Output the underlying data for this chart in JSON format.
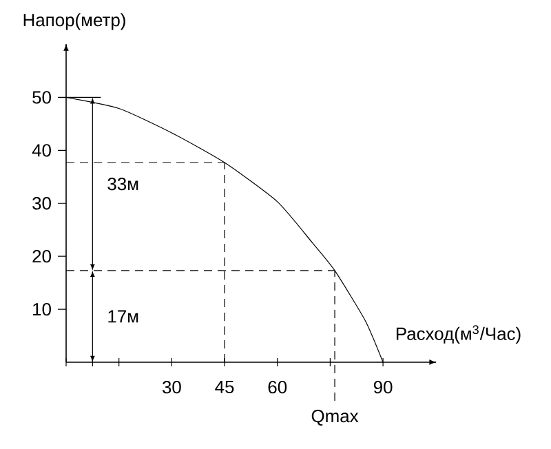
{
  "chart_data": {
    "type": "line",
    "xlabel": "Расход(м$^{3}$/Час)",
    "ylabel": "Напор(метр)",
    "x": [
      0,
      15,
      30,
      45,
      60,
      70,
      76.3,
      85,
      90
    ],
    "values": [
      50,
      47.9,
      43.3,
      37.7,
      30.3,
      22.5,
      17.3,
      7.8,
      0
    ],
    "color": "#000000",
    "xlim": [
      0,
      105
    ],
    "ylim": [
      0,
      60
    ],
    "xticks": [
      {
        "value": 0,
        "label": null
      },
      {
        "value": 7.5,
        "label": null
      },
      {
        "value": 15,
        "label": null
      },
      30,
      45,
      60,
      {
        "value": 75,
        "label": null
      },
      90
    ],
    "yticks": [
      10,
      20,
      30,
      40,
      50
    ],
    "ref_lines": [
      {
        "axis": "x",
        "value": 45,
        "line_style": "dashed"
      },
      {
        "axis": "y",
        "value": 37.7,
        "line_style": "dashed"
      },
      {
        "axis": "x",
        "value": 76.3,
        "label": "Qmax",
        "line_style": "dashed"
      },
      {
        "axis": "y",
        "value": 17.3,
        "line_style": "dashed"
      },
      {
        "axis": "y",
        "value": 50,
        "line_style": "solid"
      }
    ],
    "annotations": [
      "33м",
      "17м"
    ]
  }
}
